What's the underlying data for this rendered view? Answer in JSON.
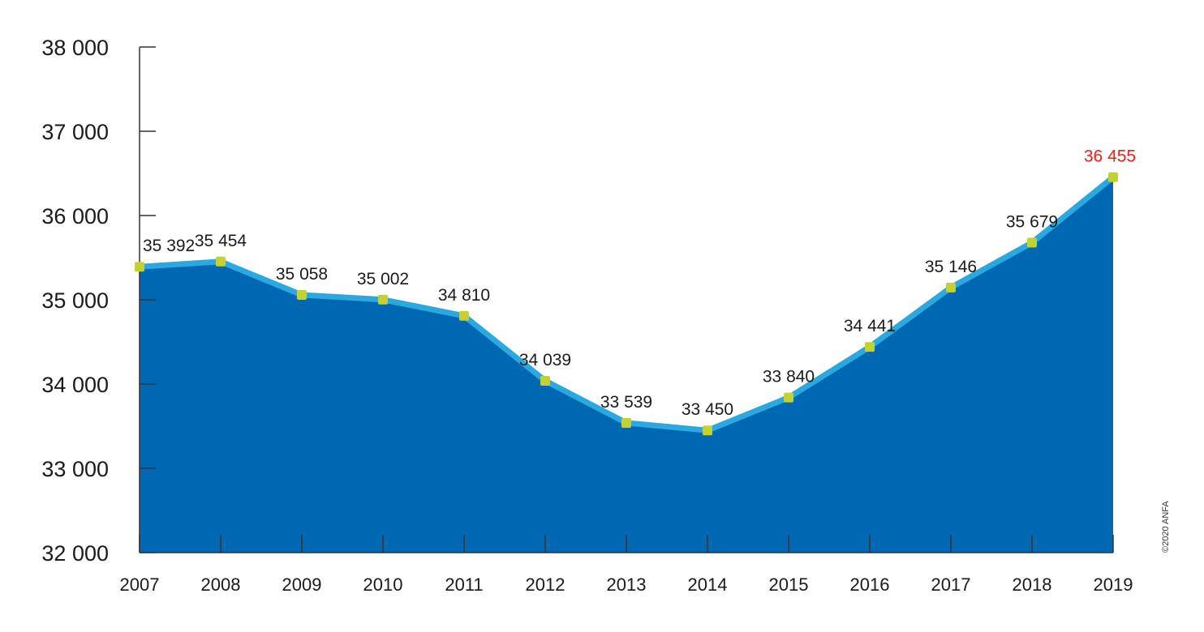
{
  "chart_data": {
    "type": "area",
    "x": [
      "2007",
      "2008",
      "2009",
      "2010",
      "2011",
      "2012",
      "2013",
      "2014",
      "2015",
      "2016",
      "2017",
      "2018",
      "2019"
    ],
    "values": [
      35392,
      35454,
      35058,
      35002,
      34810,
      34039,
      33539,
      33450,
      33840,
      34441,
      35146,
      35679,
      36455
    ],
    "data_labels": [
      "35 392",
      "35 454",
      "35 058",
      "35 002",
      "34 810",
      "34 039",
      "33 539",
      "33 450",
      "33 840",
      "34 441",
      "35 146",
      "35 679",
      "36 455"
    ],
    "highlight_index": 12,
    "ylim": [
      32000,
      38000
    ],
    "yticks": [
      32000,
      33000,
      34000,
      35000,
      36000,
      37000,
      38000
    ],
    "ytick_labels": [
      "32 000",
      "33 000",
      "34 000",
      "35 000",
      "36 000",
      "37 000",
      "38 000"
    ],
    "title": "",
    "xlabel": "",
    "ylabel": "",
    "grid": false,
    "legend": "none"
  },
  "colors": {
    "area_fill": "#0068b3",
    "line": "#2aa8e0",
    "marker": "#c3d232",
    "axis": "#333333",
    "text": "#1a1a1a",
    "highlight": "#e2231a"
  },
  "copyright": "©2020 ANFA"
}
